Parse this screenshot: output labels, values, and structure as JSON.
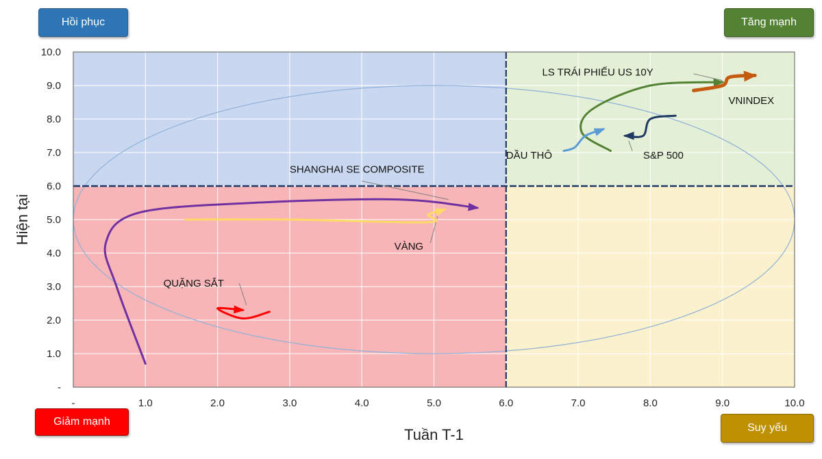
{
  "corner_labels": {
    "top_left": {
      "text": "Hồi phục",
      "color": "#2e75b6"
    },
    "top_right": {
      "text": "Tăng mạnh",
      "color": "#548235"
    },
    "bottom_left": {
      "text": "Giảm mạnh",
      "color": "#ff0000"
    },
    "bottom_right": {
      "text": "Suy yếu",
      "color": "#bf9000"
    }
  },
  "chart_data": {
    "type": "line",
    "xlabel": "Tuần T-1",
    "ylabel": "Hiện tại",
    "xlim": [
      0,
      10
    ],
    "ylim": [
      0,
      10
    ],
    "x_ticks": [
      "-",
      "1.0",
      "2.0",
      "3.0",
      "4.0",
      "5.0",
      "6.0",
      "7.0",
      "8.0",
      "9.0",
      "10.0"
    ],
    "y_ticks": [
      "-",
      "1.0",
      "2.0",
      "3.0",
      "4.0",
      "5.0",
      "6.0",
      "7.0",
      "8.0",
      "9.0",
      "10.0"
    ],
    "grid": true,
    "divider": {
      "x": 6,
      "y": 6
    },
    "quadrants": [
      {
        "name": "top-left",
        "x": [
          0,
          6
        ],
        "y": [
          6,
          10
        ],
        "color": "#c9d8f0"
      },
      {
        "name": "top-right",
        "x": [
          6,
          10
        ],
        "y": [
          6,
          10
        ],
        "color": "#e3f0d6"
      },
      {
        "name": "bottom-left",
        "x": [
          0,
          6
        ],
        "y": [
          0,
          6
        ],
        "color": "#f7b5b8"
      },
      {
        "name": "bottom-right",
        "x": [
          6,
          10
        ],
        "y": [
          0,
          6
        ],
        "color": "#fbf1cc"
      }
    ],
    "ellipse": {
      "cx": 5.0,
      "cy": 5.0,
      "rx": 5.0,
      "ry": 4.0,
      "color": "#8fb0d8"
    },
    "series": [
      {
        "name": "SHANGHAI SE COMPOSITE",
        "color": "#7030a0",
        "points": [
          [
            1.0,
            0.7
          ],
          [
            0.6,
            3.0
          ],
          [
            0.45,
            4.3
          ],
          [
            0.9,
            5.2
          ],
          [
            2.5,
            5.5
          ],
          [
            4.5,
            5.6
          ],
          [
            5.6,
            5.35
          ]
        ],
        "label": {
          "x": 3.0,
          "y": 6.5,
          "anchor": "start"
        },
        "leader": [
          [
            4.0,
            6.15
          ],
          [
            5.2,
            5.6
          ]
        ]
      },
      {
        "name": "VÀNG",
        "color": "#ffd966",
        "points": [
          [
            1.55,
            5.0
          ],
          [
            3.0,
            5.0
          ],
          [
            4.9,
            4.92
          ],
          [
            4.92,
            5.15
          ],
          [
            5.15,
            5.3
          ]
        ],
        "label": {
          "x": 4.45,
          "y": 4.2,
          "anchor": "start"
        },
        "leader": [
          [
            4.95,
            4.3
          ],
          [
            5.05,
            5.1
          ]
        ]
      },
      {
        "name": "QUẶNG SẮT",
        "color": "#ff0000",
        "points": [
          [
            2.72,
            2.25
          ],
          [
            2.35,
            2.05
          ],
          [
            2.0,
            2.35
          ],
          [
            2.35,
            2.3
          ]
        ],
        "label": {
          "x": 1.25,
          "y": 3.1,
          "anchor": "start"
        },
        "leader": [
          [
            2.3,
            3.1
          ],
          [
            2.4,
            2.45
          ]
        ]
      },
      {
        "name": "LS TRÁI PHIẾU US 10Y",
        "color": "#548235",
        "points": [
          [
            7.45,
            7.05
          ],
          [
            7.05,
            7.6
          ],
          [
            7.2,
            8.3
          ],
          [
            8.0,
            9.0
          ],
          [
            9.0,
            9.1
          ]
        ],
        "label": {
          "x": 6.5,
          "y": 9.4,
          "anchor": "start"
        },
        "leader": [
          [
            8.6,
            9.35
          ],
          [
            9.0,
            9.15
          ]
        ]
      },
      {
        "name": "VNINDEX",
        "color": "#c55a11",
        "points": [
          [
            8.6,
            8.85
          ],
          [
            9.0,
            9.0
          ],
          [
            9.1,
            9.25
          ],
          [
            9.45,
            9.3
          ]
        ],
        "label": {
          "x": 9.4,
          "y": 8.55,
          "anchor": "middle"
        },
        "leader": null
      },
      {
        "name": "S&P 500",
        "color": "#1f3864",
        "points": [
          [
            8.35,
            8.1
          ],
          [
            8.0,
            8.0
          ],
          [
            7.9,
            7.5
          ],
          [
            7.65,
            7.5
          ]
        ],
        "label": {
          "x": 7.9,
          "y": 6.92,
          "anchor": "start"
        },
        "leader": [
          [
            7.75,
            7.05
          ],
          [
            7.7,
            7.35
          ]
        ]
      },
      {
        "name": "DẦU THÔ",
        "color": "#5b9bd5",
        "points": [
          [
            6.8,
            7.05
          ],
          [
            6.95,
            7.15
          ],
          [
            7.1,
            7.5
          ],
          [
            7.35,
            7.7
          ]
        ],
        "label": {
          "x": 6.0,
          "y": 6.92,
          "anchor": "start"
        },
        "leader": null
      }
    ]
  }
}
